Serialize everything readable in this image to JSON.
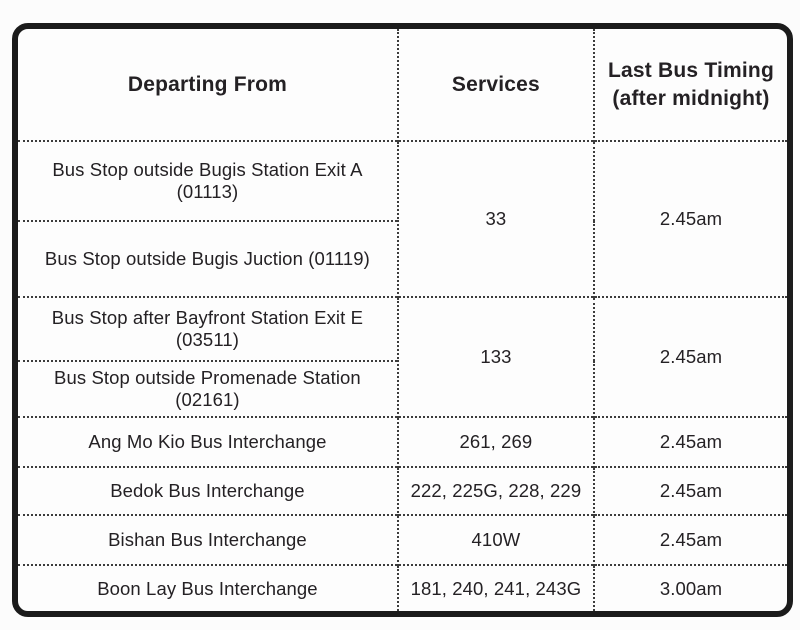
{
  "colors": {
    "outer_border": "#1b1b1b",
    "divider": "#3c3c3c",
    "text": "#242124",
    "background": "#fdfdfd"
  },
  "table": {
    "header": {
      "departing": "Departing From",
      "services": "Services",
      "timing_line1": "Last Bus Timing",
      "timing_line2": "(after midnight)"
    },
    "groups": [
      {
        "stops": [
          "Bus Stop outside Bugis Station Exit A (01113)",
          "Bus Stop outside Bugis Juction (01119)"
        ],
        "services": "33",
        "timing": "2.45am"
      },
      {
        "stops": [
          "Bus Stop after Bayfront Station Exit E (03511)",
          "Bus Stop outside Promenade Station (02161)"
        ],
        "services": "133",
        "timing": "2.45am"
      }
    ],
    "rows": [
      {
        "departing": "Ang Mo Kio Bus Interchange",
        "services": "261, 269",
        "timing": "2.45am"
      },
      {
        "departing": "Bedok Bus Interchange",
        "services": "222, 225G, 228, 229",
        "timing": "2.45am"
      },
      {
        "departing": "Bishan Bus Interchange",
        "services": "410W",
        "timing": "2.45am"
      },
      {
        "departing": "Boon Lay Bus Interchange",
        "services": "181, 240, 241, 243G",
        "timing": "3.00am"
      }
    ]
  }
}
